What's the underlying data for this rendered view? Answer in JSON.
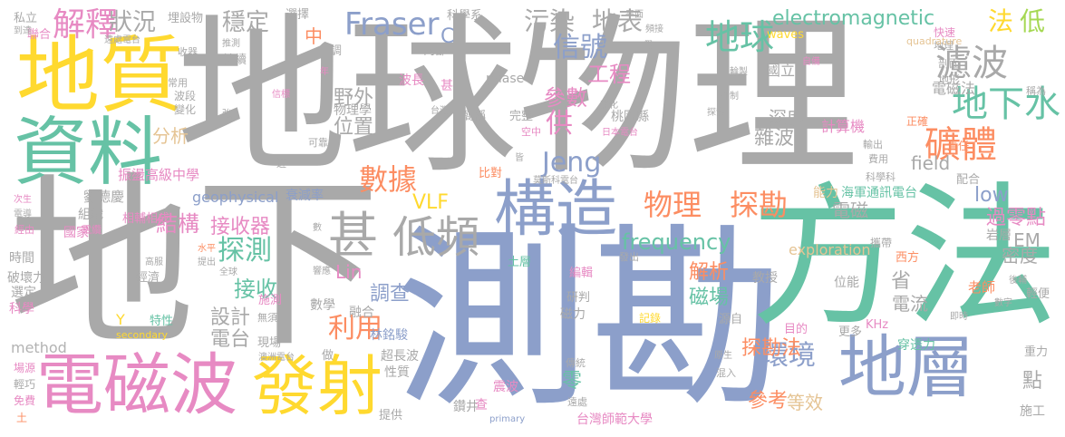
{
  "palette": {
    "gray": "#a9a9a9",
    "blue": "#8c9fca",
    "green": "#66c2a5",
    "orange": "#fc8d62",
    "yellow": "#ffd92f",
    "pink": "#e78ac3",
    "lime": "#a6d854",
    "tan": "#e5c494",
    "silver": "#b3b3b3"
  },
  "words": [
    {
      "text": "地球物理",
      "color": "gray"
    },
    {
      "text": "地下",
      "color": "gray"
    },
    {
      "text": "測勘",
      "color": "blue"
    },
    {
      "text": "方法",
      "color": "green"
    },
    {
      "text": "地質",
      "color": "yellow"
    },
    {
      "text": "資料",
      "color": "green"
    },
    {
      "text": "電磁波",
      "color": "pink"
    },
    {
      "text": "發射",
      "color": "yellow"
    },
    {
      "text": "地層",
      "color": "blue"
    },
    {
      "text": "構造",
      "color": "blue"
    },
    {
      "text": "甚",
      "color": "gray"
    },
    {
      "text": "低頻",
      "color": "gray"
    },
    {
      "text": "礦體",
      "color": "orange"
    },
    {
      "text": "濾波",
      "color": "gray"
    },
    {
      "text": "地下水",
      "color": "green"
    },
    {
      "text": "物理",
      "color": "orange"
    },
    {
      "text": "探勘",
      "color": "orange"
    },
    {
      "text": "數據",
      "color": "orange"
    },
    {
      "text": "解釋",
      "color": "pink"
    },
    {
      "text": "Fraser",
      "color": "blue"
    },
    {
      "text": "electromagnetic",
      "color": "green"
    },
    {
      "text": "地球",
      "color": "green"
    },
    {
      "text": "信號",
      "color": "blue"
    },
    {
      "text": "Jeng",
      "color": "blue"
    },
    {
      "text": "探測",
      "color": "green"
    },
    {
      "text": "接收",
      "color": "green"
    },
    {
      "text": "環境",
      "color": "blue"
    },
    {
      "text": "利用",
      "color": "orange"
    },
    {
      "text": "frequency",
      "color": "green"
    },
    {
      "text": "地表",
      "color": "gray"
    },
    {
      "text": "污染",
      "color": "gray"
    },
    {
      "text": "狀況",
      "color": "gray"
    },
    {
      "text": "穩定",
      "color": "gray"
    },
    {
      "text": "法",
      "color": "yellow"
    },
    {
      "text": "低",
      "color": "lime"
    },
    {
      "text": "結構",
      "color": "pink"
    },
    {
      "text": "接收器",
      "color": "pink"
    },
    {
      "text": "供",
      "color": "pink"
    },
    {
      "text": "參數",
      "color": "pink"
    },
    {
      "text": "工程",
      "color": "pink"
    },
    {
      "text": "位置",
      "color": "gray"
    },
    {
      "text": "野外",
      "color": "gray"
    },
    {
      "text": "分析",
      "color": "tan"
    },
    {
      "text": "物理學",
      "color": "gray"
    },
    {
      "text": "雜波",
      "color": "gray"
    },
    {
      "text": "field",
      "color": "gray"
    },
    {
      "text": "low",
      "color": "blue"
    },
    {
      "text": "過零點",
      "color": "pink"
    },
    {
      "text": "EM",
      "color": "gray"
    },
    {
      "text": "密度",
      "color": "gray"
    },
    {
      "text": "電磁",
      "color": "gray"
    },
    {
      "text": "VLF",
      "color": "yellow"
    },
    {
      "text": "Lin",
      "color": "pink"
    },
    {
      "text": "解析",
      "color": "orange"
    },
    {
      "text": "調查",
      "color": "blue"
    },
    {
      "text": "設計",
      "color": "gray"
    },
    {
      "text": "電台",
      "color": "gray"
    },
    {
      "text": "省",
      "color": "gray"
    },
    {
      "text": "磁場",
      "color": "green"
    },
    {
      "text": "電流",
      "color": "gray"
    },
    {
      "text": "探勘法",
      "color": "orange"
    },
    {
      "text": "參考",
      "color": "orange"
    },
    {
      "text": "等效",
      "color": "tan"
    },
    {
      "text": "零",
      "color": "green"
    },
    {
      "text": "點",
      "color": "gray"
    },
    {
      "text": "中",
      "color": "orange"
    },
    {
      "text": "C",
      "color": "blue"
    },
    {
      "text": "深度",
      "color": "gray"
    },
    {
      "text": "計算機",
      "color": "pink"
    },
    {
      "text": "國立",
      "color": "gray"
    },
    {
      "text": "電磁法",
      "color": "gray"
    },
    {
      "text": "exploration",
      "color": "tan"
    },
    {
      "text": "geophysical",
      "color": "blue"
    },
    {
      "text": "波長",
      "color": "pink"
    },
    {
      "text": "振盪高級中學",
      "color": "pink"
    },
    {
      "text": "劉德慶",
      "color": "gray"
    },
    {
      "text": "衰減率",
      "color": "blue"
    },
    {
      "text": "林銘駿",
      "color": "blue"
    },
    {
      "text": "超長波",
      "color": "gray"
    },
    {
      "text": "震波",
      "color": "pink"
    },
    {
      "text": "鑽井",
      "color": "gray"
    },
    {
      "text": "台灣師範大學",
      "color": "pink"
    },
    {
      "text": "教授",
      "color": "gray"
    },
    {
      "text": "位能",
      "color": "gray"
    },
    {
      "text": "老師",
      "color": "orange"
    },
    {
      "text": "西方",
      "color": "orange"
    },
    {
      "text": "岩層",
      "color": "gray"
    },
    {
      "text": "能力",
      "color": "tan"
    },
    {
      "text": "海軍通訊電台",
      "color": "green"
    },
    {
      "text": "攜帶",
      "color": "gray"
    },
    {
      "text": "method",
      "color": "silver"
    },
    {
      "text": "時間",
      "color": "gray"
    },
    {
      "text": "破壞力",
      "color": "gray"
    },
    {
      "text": "選定",
      "color": "gray"
    },
    {
      "text": "科學",
      "color": "pink"
    },
    {
      "text": "組織",
      "color": "gray"
    },
    {
      "text": "國家",
      "color": "pink"
    },
    {
      "text": "經由",
      "color": "pink"
    },
    {
      "text": "電纜",
      "color": "pink"
    },
    {
      "text": "相輔相成",
      "color": "pink"
    },
    {
      "text": "經濟",
      "color": "gray"
    },
    {
      "text": "數學",
      "color": "gray"
    },
    {
      "text": "融合",
      "color": "gray"
    },
    {
      "text": "性質",
      "color": "gray"
    },
    {
      "text": "做",
      "color": "gray"
    },
    {
      "text": "施測",
      "color": "pink"
    },
    {
      "text": "無須",
      "color": "gray"
    },
    {
      "text": "特性",
      "color": "green"
    },
    {
      "text": "現場",
      "color": "gray"
    },
    {
      "text": "Y",
      "color": "yellow"
    },
    {
      "text": "secondary",
      "color": "yellow"
    },
    {
      "text": "澳洲電台",
      "color": "gray"
    },
    {
      "text": "提供",
      "color": "gray"
    },
    {
      "text": "primary",
      "color": "blue"
    },
    {
      "text": "遠處",
      "color": "gray"
    },
    {
      "text": "傳統",
      "color": "gray"
    },
    {
      "text": "查",
      "color": "pink"
    },
    {
      "text": "磁力",
      "color": "gray"
    },
    {
      "text": "研判",
      "color": "gray"
    },
    {
      "text": "記錄",
      "color": "yellow"
    },
    {
      "text": "土層",
      "color": "green"
    },
    {
      "text": "編輯",
      "color": "pink"
    },
    {
      "text": "發出",
      "color": "gray"
    },
    {
      "text": "源自",
      "color": "gray"
    },
    {
      "text": "目的",
      "color": "pink"
    },
    {
      "text": "更多",
      "color": "gray"
    },
    {
      "text": "KHz",
      "color": "pink"
    },
    {
      "text": "穿透力",
      "color": "green"
    },
    {
      "text": "重力",
      "color": "gray"
    },
    {
      "text": "原生",
      "color": "gray"
    },
    {
      "text": "混入",
      "color": "gray"
    },
    {
      "text": "施工",
      "color": "gray"
    },
    {
      "text": "輕便",
      "color": "gray"
    },
    {
      "text": "後輔",
      "color": "gray"
    },
    {
      "text": "數字",
      "color": "gray"
    },
    {
      "text": "即時",
      "color": "gray"
    },
    {
      "text": "費用",
      "color": "gray"
    },
    {
      "text": "科學科",
      "color": "gray"
    },
    {
      "text": "輸出",
      "color": "gray"
    },
    {
      "text": "責任",
      "color": "orange"
    },
    {
      "text": "正確",
      "color": "orange"
    },
    {
      "text": "配合",
      "color": "gray"
    },
    {
      "text": "地形",
      "color": "gray"
    },
    {
      "text": "剖面",
      "color": "gray"
    },
    {
      "text": "地理",
      "color": "gray"
    },
    {
      "text": "稱為",
      "color": "gray"
    },
    {
      "text": "快速",
      "color": "pink"
    },
    {
      "text": "頻接",
      "color": "gray"
    },
    {
      "text": "假",
      "color": "gray"
    },
    {
      "text": "自備",
      "color": "pink"
    },
    {
      "text": "quadrature",
      "color": "tan"
    },
    {
      "text": "waves",
      "color": "yellow"
    },
    {
      "text": "桃園縣",
      "color": "gray"
    },
    {
      "text": "日本電台",
      "color": "pink"
    },
    {
      "text": "莫斯科電台",
      "color": "gray"
    },
    {
      "text": "比對",
      "color": "orange"
    },
    {
      "text": "空中",
      "color": "pink"
    },
    {
      "text": "完整",
      "color": "gray"
    },
    {
      "text": "簡稱",
      "color": "gray"
    },
    {
      "text": "台灣",
      "color": "gray"
    },
    {
      "text": "強化",
      "color": "gray"
    },
    {
      "text": "phase",
      "color": "gray"
    },
    {
      "text": "甚",
      "color": "pink"
    },
    {
      "text": "內部",
      "color": "gray"
    },
    {
      "text": "科學系",
      "color": "gray"
    },
    {
      "text": "平面",
      "color": "gray"
    },
    {
      "text": "選擇",
      "color": "gray"
    },
    {
      "text": "調",
      "color": "gray"
    },
    {
      "text": "年",
      "color": "pink"
    },
    {
      "text": "持續",
      "color": "gray"
    },
    {
      "text": "收器",
      "color": "gray"
    },
    {
      "text": "遠處電台",
      "color": "gray"
    },
    {
      "text": "埋設物",
      "color": "gray"
    },
    {
      "text": "私立",
      "color": "gray"
    },
    {
      "text": "聯合",
      "color": "pink"
    },
    {
      "text": "到達",
      "color": "gray"
    },
    {
      "text": "波段",
      "color": "gray"
    },
    {
      "text": "變化",
      "color": "gray"
    },
    {
      "text": "常用",
      "color": "gray"
    },
    {
      "text": "強",
      "color": "gray"
    },
    {
      "text": "信標",
      "color": "pink"
    },
    {
      "text": "可靠",
      "color": "gray"
    },
    {
      "text": "近",
      "color": "gray"
    },
    {
      "text": "皆",
      "color": "gray"
    },
    {
      "text": "全球",
      "color": "gray"
    },
    {
      "text": "響應",
      "color": "gray"
    },
    {
      "text": "數",
      "color": "gray"
    },
    {
      "text": "水平",
      "color": "orange"
    },
    {
      "text": "提出",
      "color": "gray"
    },
    {
      "text": "高服",
      "color": "gray"
    },
    {
      "text": "次生",
      "color": "pink"
    },
    {
      "text": "電導",
      "color": "gray"
    },
    {
      "text": "場源",
      "color": "pink"
    },
    {
      "text": "輕巧",
      "color": "gray"
    },
    {
      "text": "免費",
      "color": "pink"
    },
    {
      "text": "土",
      "color": "orange"
    },
    {
      "text": "推測",
      "color": "gray"
    },
    {
      "text": "輪製",
      "color": "gray"
    },
    {
      "text": "探索",
      "color": "gray"
    },
    {
      "text": "抑制",
      "color": "gray"
    }
  ]
}
